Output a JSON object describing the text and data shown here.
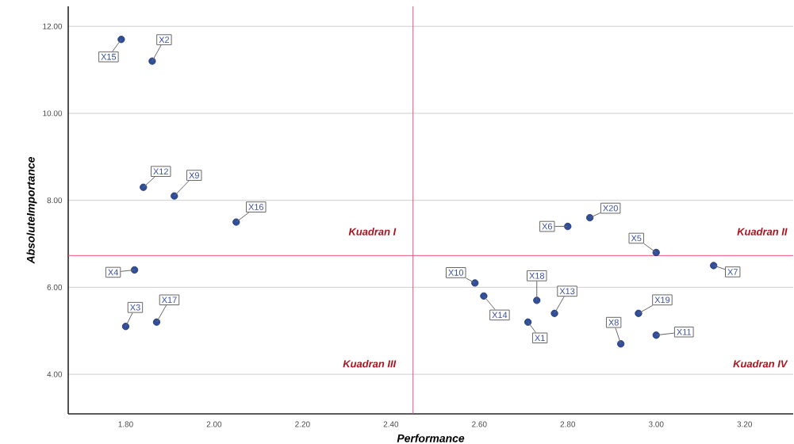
{
  "chart_data": {
    "type": "scatter",
    "xlabel": "Performance",
    "ylabel": "AbsoluteImportance",
    "series": [
      {
        "color": "#2f4f9e",
        "x": [
          2.71,
          1.86,
          1.8,
          1.82,
          3.0,
          2.8,
          3.13,
          2.92,
          1.91,
          2.59,
          3.0,
          1.84,
          2.77,
          2.61,
          1.79,
          2.05,
          1.87,
          2.73,
          2.96,
          2.85
        ],
        "values": [
          5.2,
          11.2,
          5.1,
          6.4,
          6.8,
          7.4,
          6.5,
          4.7,
          8.1,
          6.1,
          4.9,
          8.3,
          5.4,
          5.8,
          11.7,
          7.5,
          5.2,
          5.7,
          5.4,
          7.6
        ]
      }
    ],
    "marker": "circle",
    "xlim": [
      1.67,
      3.31
    ],
    "ylim": [
      3.09,
      12.46
    ],
    "xticks": [
      {
        "value": 1.8,
        "label": "1.80"
      },
      {
        "value": 2.0,
        "label": "2.00"
      },
      {
        "value": 2.2,
        "label": "2.20"
      },
      {
        "value": 2.4,
        "label": "2.40"
      },
      {
        "value": 2.6,
        "label": "2.60"
      },
      {
        "value": 2.8,
        "label": "2.80"
      },
      {
        "value": 3.0,
        "label": "3.00"
      },
      {
        "value": 3.2,
        "label": "3.20"
      }
    ],
    "yticks": [
      {
        "value": 4,
        "label": "4.00"
      },
      {
        "value": 6,
        "label": "6.00"
      },
      {
        "value": 8,
        "label": "8.00"
      },
      {
        "value": 10,
        "label": "10.00"
      },
      {
        "value": 12,
        "label": "12.00"
      }
    ],
    "grid": "y",
    "ref_lines": [
      {
        "axis": "x",
        "value": 2.45,
        "color": "#e8507a"
      },
      {
        "axis": "y",
        "value": 6.73,
        "color": "#e8507a"
      }
    ],
    "annotations": [
      {
        "text": "X1",
        "x": 2.71,
        "y": 5.2
      },
      {
        "text": "X2",
        "x": 1.86,
        "y": 11.2
      },
      {
        "text": "X3",
        "x": 1.8,
        "y": 5.1
      },
      {
        "text": "X4",
        "x": 1.82,
        "y": 6.4
      },
      {
        "text": "X5",
        "x": 3.0,
        "y": 6.8
      },
      {
        "text": "X6",
        "x": 2.8,
        "y": 7.4
      },
      {
        "text": "X7",
        "x": 3.13,
        "y": 6.5
      },
      {
        "text": "X8",
        "x": 2.92,
        "y": 4.7
      },
      {
        "text": "X9",
        "x": 1.91,
        "y": 8.1
      },
      {
        "text": "X10",
        "x": 2.59,
        "y": 6.1
      },
      {
        "text": "X11",
        "x": 3.0,
        "y": 4.9
      },
      {
        "text": "X12",
        "x": 1.84,
        "y": 8.3
      },
      {
        "text": "X13",
        "x": 2.77,
        "y": 5.4
      },
      {
        "text": "X14",
        "x": 2.61,
        "y": 5.8
      },
      {
        "text": "X15",
        "x": 1.79,
        "y": 11.7
      },
      {
        "text": "X16",
        "x": 2.05,
        "y": 7.5
      },
      {
        "text": "X17",
        "x": 1.87,
        "y": 5.2
      },
      {
        "text": "X18",
        "x": 2.73,
        "y": 5.7
      },
      {
        "text": "X19",
        "x": 2.96,
        "y": 5.4
      },
      {
        "text": "X20",
        "x": 2.85,
        "y": 7.6
      },
      "Kuadran I",
      "Kuadran II",
      "Kuadran III",
      "Kuadran IV"
    ]
  }
}
